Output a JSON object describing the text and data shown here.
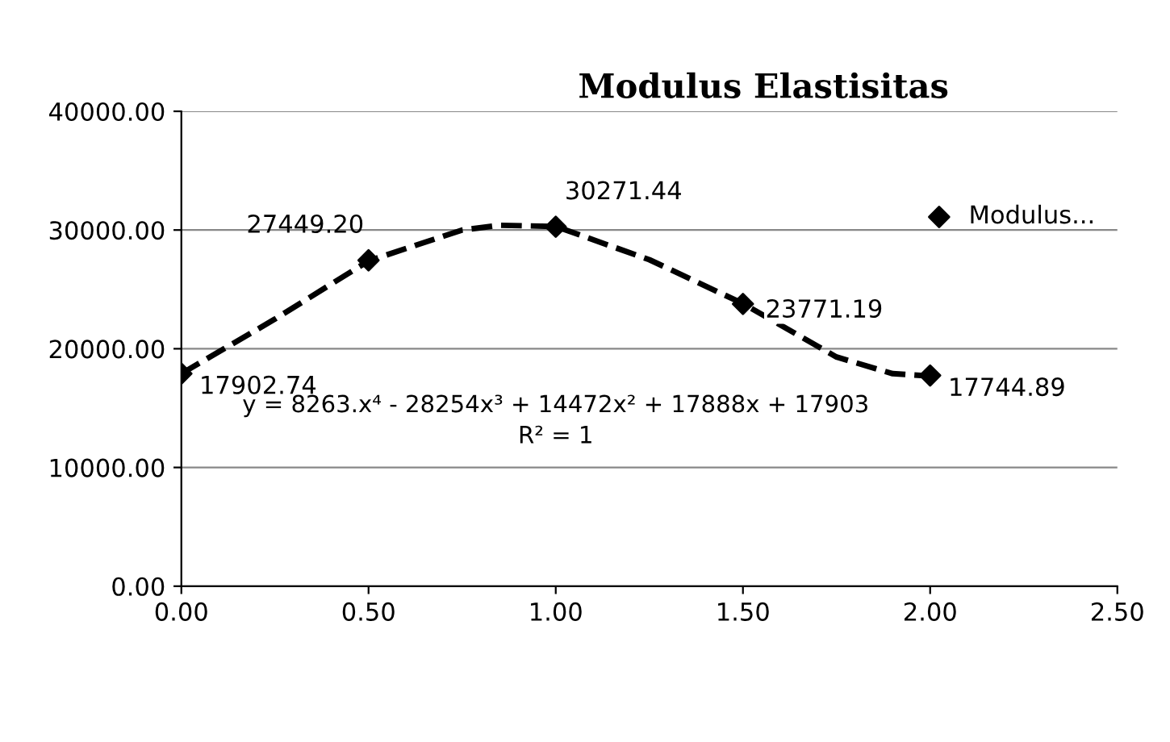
{
  "chart_data": {
    "type": "scatter",
    "title": "Modulus Elastisitas",
    "series": [
      {
        "name": "Modulus...",
        "color": "#000000",
        "marker": "diamond",
        "x": [
          0,
          0.5,
          1,
          1.5,
          2
        ],
        "values": [
          17902.74,
          27449.2,
          30271.44,
          23771.19,
          17744.89
        ],
        "value_labels": [
          "17902.74",
          "27449.20",
          "30271.44",
          "23771.19",
          "17744.89"
        ]
      },
      {
        "type": "line",
        "color": "#000000",
        "line_style": "dashed",
        "marker": "none",
        "x": [
          0,
          0.25,
          0.5,
          0.75,
          0.85,
          1,
          1.25,
          1.5,
          1.75,
          1.9,
          2
        ],
        "values": [
          17900,
          22500,
          27400,
          30000,
          30400,
          30300,
          27500,
          23800,
          19300,
          17900,
          17700
        ]
      }
    ],
    "annotations": [
      "y = 8263.x⁴ - 28254x³ + 14472x² + 17888x + 17903",
      "R² = 1"
    ],
    "xlim": [
      0,
      2.5
    ],
    "ylim": [
      0,
      40000
    ],
    "xticks": [
      {
        "value": 0,
        "label": "0.00"
      },
      {
        "value": 0.5,
        "label": "0.50"
      },
      {
        "value": 1,
        "label": "1.00"
      },
      {
        "value": 1.5,
        "label": "1.50"
      },
      {
        "value": 2,
        "label": "2.00"
      },
      {
        "value": 2.5,
        "label": "2.50"
      }
    ],
    "yticks": [
      {
        "value": 0,
        "label": "0.00"
      },
      {
        "value": 10000,
        "label": "10000.00"
      },
      {
        "value": 20000,
        "label": "20000.00"
      },
      {
        "value": 30000,
        "label": "30000.00"
      },
      {
        "value": 40000,
        "label": "40000.00"
      }
    ],
    "grid": "y",
    "legend": "top right"
  }
}
